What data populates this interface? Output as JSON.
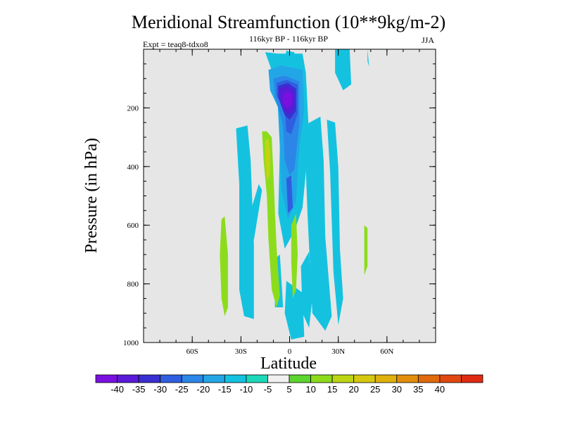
{
  "chart_data": {
    "type": "contour",
    "title": "Meridional Streamfunction (10**9kg/m-2)",
    "subtitle": "116kyr BP - 116kyr BP",
    "expt_label": "Expt = teaq8-tdxo8",
    "season": "JJA",
    "xlabel": "Latitude",
    "ylabel": "Pressure (in hPa)",
    "xlim": [
      -90,
      90
    ],
    "ylim": [
      1000,
      0
    ],
    "x_ticks": [
      {
        "value": -60,
        "label": "60S"
      },
      {
        "value": -30,
        "label": "30S"
      },
      {
        "value": 0,
        "label": "0"
      },
      {
        "value": 30,
        "label": "30N"
      },
      {
        "value": 60,
        "label": "60N"
      }
    ],
    "y_ticks": [
      {
        "value": 200,
        "label": "200"
      },
      {
        "value": 400,
        "label": "400"
      },
      {
        "value": 600,
        "label": "600"
      },
      {
        "value": 800,
        "label": "800"
      },
      {
        "value": 1000,
        "label": "1000"
      }
    ],
    "colorbar": {
      "colors": [
        "#7a10e0",
        "#5a1ad8",
        "#3a2fd0",
        "#2f5fe0",
        "#2b86e8",
        "#23a6e6",
        "#14c2e0",
        "#1cd8b8",
        "#f0f0f0",
        "#5cd62e",
        "#8cdc1c",
        "#bcd614",
        "#d6c80e",
        "#e0b00c",
        "#e28e0c",
        "#e06a0c",
        "#e04810",
        "#e02a12"
      ],
      "labels": [
        "-40",
        "-35",
        "-30",
        "-25",
        "-20",
        "-15",
        "-10",
        "-5",
        "5",
        "10",
        "15",
        "20",
        "25",
        "30",
        "35",
        "40"
      ]
    },
    "field_regions": [
      {
        "level": -10,
        "points": [
          [
            -15,
            10
          ],
          [
            -7,
            15
          ],
          [
            8,
            15
          ],
          [
            10,
            80
          ],
          [
            12,
            300
          ],
          [
            8,
            540
          ],
          [
            3,
            620
          ],
          [
            -3,
            680
          ],
          [
            -7,
            560
          ],
          [
            -6,
            330
          ],
          [
            -8,
            120
          ]
        ]
      },
      {
        "level": -10,
        "points": [
          [
            -2,
            5
          ],
          [
            3,
            10
          ],
          [
            4,
            100
          ],
          [
            -1,
            130
          ],
          [
            -4,
            60
          ]
        ]
      },
      {
        "level": -10,
        "points": [
          [
            7,
            740
          ],
          [
            12,
            690
          ],
          [
            14,
            850
          ],
          [
            12,
            950
          ],
          [
            8,
            900
          ]
        ]
      },
      {
        "level": -10,
        "points": [
          [
            -2,
            790
          ],
          [
            8,
            830
          ],
          [
            9,
            980
          ],
          [
            1,
            990
          ],
          [
            -3,
            900
          ]
        ]
      },
      {
        "level": -10,
        "points": [
          [
            -33,
            270
          ],
          [
            -26,
            260
          ],
          [
            -24,
            380
          ],
          [
            -22,
            670
          ],
          [
            -22,
            920
          ],
          [
            -28,
            910
          ],
          [
            -31,
            820
          ],
          [
            -31,
            460
          ]
        ]
      },
      {
        "level": -10,
        "points": [
          [
            9,
            260
          ],
          [
            19,
            230
          ],
          [
            21,
            380
          ],
          [
            22,
            640
          ],
          [
            26,
            910
          ],
          [
            22,
            960
          ],
          [
            14,
            900
          ],
          [
            11,
            560
          ]
        ]
      },
      {
        "level": -10,
        "points": [
          [
            23,
            240
          ],
          [
            28,
            250
          ],
          [
            30,
            400
          ],
          [
            31,
            680
          ],
          [
            33,
            850
          ],
          [
            30,
            940
          ],
          [
            27,
            760
          ],
          [
            25,
            420
          ]
        ]
      },
      {
        "level": -10,
        "points": [
          [
            28,
            0
          ],
          [
            37,
            0
          ],
          [
            38,
            120
          ],
          [
            33,
            140
          ],
          [
            28,
            80
          ]
        ]
      },
      {
        "level": -10,
        "points": [
          [
            -10,
            720
          ],
          [
            -6,
            700
          ],
          [
            -4,
            880
          ],
          [
            -9,
            880
          ]
        ]
      },
      {
        "level": -10,
        "points": [
          [
            -25,
            570
          ],
          [
            -19,
            460
          ],
          [
            -17,
            480
          ],
          [
            -22,
            650
          ]
        ]
      },
      {
        "level": -10,
        "points": [
          [
            48,
            0
          ],
          [
            49,
            60
          ],
          [
            48,
            40
          ]
        ]
      },
      {
        "level": -15,
        "points": [
          [
            -13,
            70
          ],
          [
            -5,
            55
          ],
          [
            8,
            70
          ],
          [
            9,
            210
          ],
          [
            6,
            330
          ],
          [
            4,
            520
          ],
          [
            -1,
            580
          ],
          [
            -5,
            480
          ],
          [
            -6,
            340
          ],
          [
            -7,
            200
          ],
          [
            -12,
            140
          ]
        ]
      },
      {
        "level": -20,
        "points": [
          [
            -10,
            100
          ],
          [
            -3,
            90
          ],
          [
            6,
            110
          ],
          [
            6,
            250
          ],
          [
            3,
            410
          ],
          [
            0,
            430
          ],
          [
            -3,
            380
          ],
          [
            -4,
            260
          ],
          [
            -9,
            160
          ]
        ]
      },
      {
        "level": -25,
        "points": [
          [
            -8,
            115
          ],
          [
            -2,
            105
          ],
          [
            5,
            120
          ],
          [
            5,
            220
          ],
          [
            1,
            290
          ],
          [
            -2,
            280
          ],
          [
            -3,
            200
          ],
          [
            -8,
            160
          ]
        ]
      },
      {
        "level": -25,
        "points": [
          [
            -2,
            440
          ],
          [
            1,
            430
          ],
          [
            2,
            540
          ],
          [
            -1,
            560
          ]
        ]
      },
      {
        "level": -30,
        "points": [
          [
            -7,
            125
          ],
          [
            -1,
            115
          ],
          [
            4,
            135
          ],
          [
            4,
            210
          ],
          [
            0,
            240
          ],
          [
            -3,
            225
          ],
          [
            -7,
            165
          ]
        ]
      },
      {
        "level": -35,
        "points": [
          [
            -6,
            135
          ],
          [
            -1,
            125
          ],
          [
            3,
            145
          ],
          [
            3,
            195
          ],
          [
            0,
            220
          ],
          [
            -3,
            210
          ],
          [
            -6,
            170
          ]
        ]
      },
      {
        "level": -40,
        "points": [
          [
            -4,
            150
          ],
          [
            0,
            145
          ],
          [
            2,
            160
          ],
          [
            1,
            190
          ],
          [
            -2,
            200
          ],
          [
            -4,
            180
          ]
        ]
      },
      {
        "level": 10,
        "points": [
          [
            -17,
            280
          ],
          [
            -14,
            280
          ],
          [
            -11,
            300
          ],
          [
            -10,
            420
          ],
          [
            -9,
            560
          ],
          [
            -8,
            680
          ],
          [
            -6,
            840
          ],
          [
            -8,
            880
          ],
          [
            -11,
            820
          ],
          [
            -13,
            650
          ],
          [
            -14,
            500
          ],
          [
            -16,
            380
          ]
        ]
      },
      {
        "level": 10,
        "points": [
          [
            -42,
            580
          ],
          [
            -40,
            570
          ],
          [
            -38,
            700
          ],
          [
            -38,
            880
          ],
          [
            -40,
            910
          ],
          [
            -42,
            850
          ],
          [
            -43,
            700
          ]
        ]
      },
      {
        "level": 10,
        "points": [
          [
            1,
            600
          ],
          [
            4,
            560
          ],
          [
            5,
            700
          ],
          [
            4,
            820
          ],
          [
            2,
            850
          ],
          [
            1,
            720
          ]
        ]
      },
      {
        "level": 10,
        "points": [
          [
            46,
            600
          ],
          [
            48,
            610
          ],
          [
            48,
            740
          ],
          [
            46,
            770
          ]
        ]
      },
      {
        "level": 15,
        "points": [
          [
            -15,
            310
          ],
          [
            -13,
            305
          ],
          [
            -12,
            350
          ],
          [
            -12,
            430
          ],
          [
            -14,
            450
          ],
          [
            -15,
            380
          ]
        ]
      },
      {
        "level": 20,
        "points": [
          [
            -14,
            340
          ],
          [
            -13,
            340
          ],
          [
            -13,
            390
          ],
          [
            -14,
            395
          ]
        ]
      }
    ]
  }
}
